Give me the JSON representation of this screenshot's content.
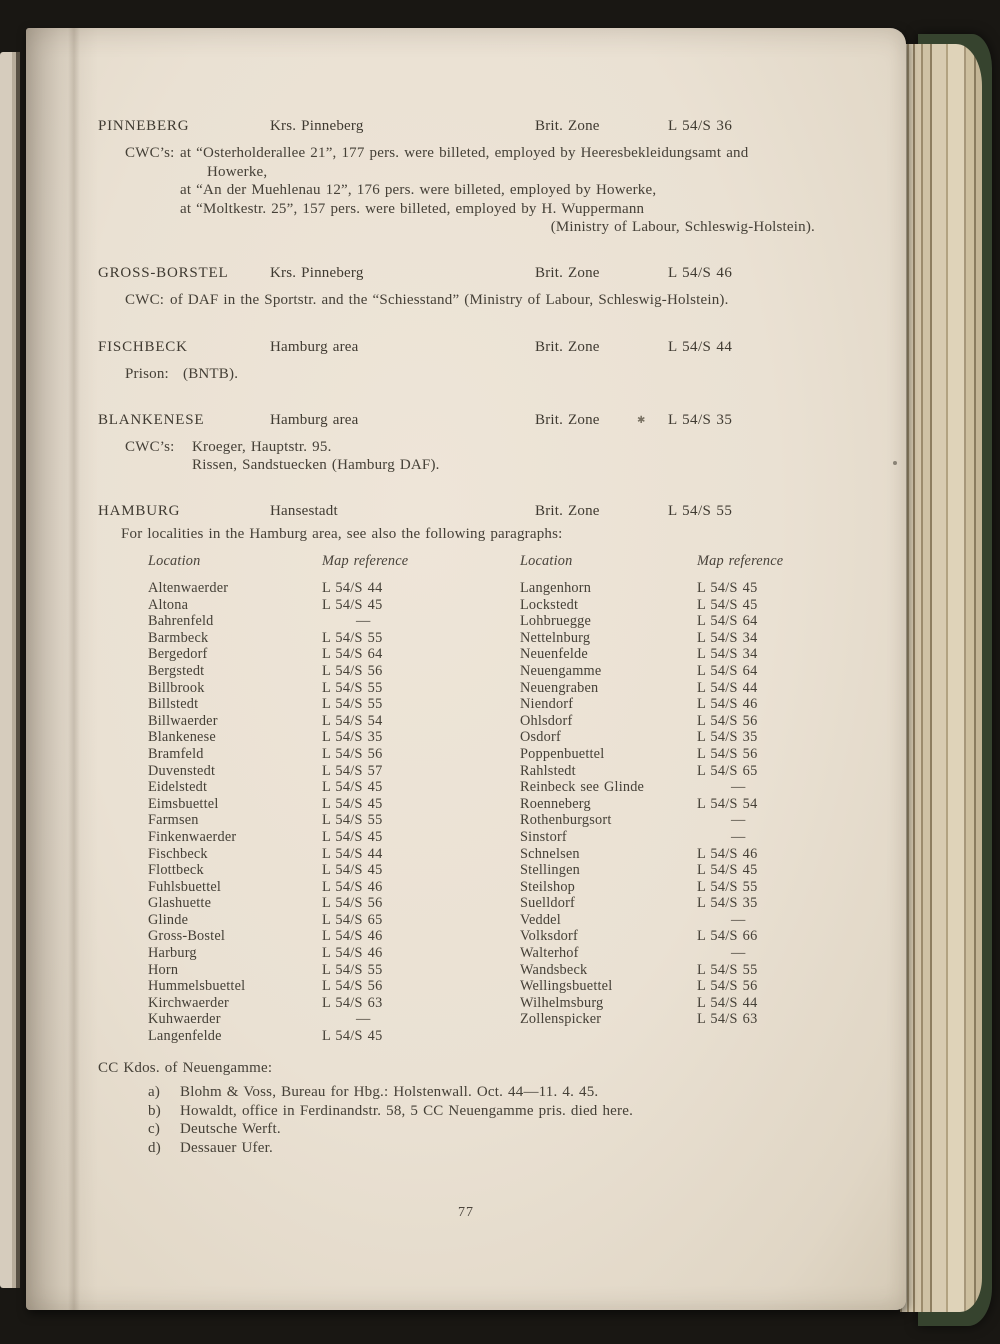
{
  "page_number": "77",
  "sections": [
    {
      "name": "PINNEBERG",
      "area": "Krs. Pinneberg",
      "zone": "Brit. Zone",
      "map_ref": "L 54/S 36",
      "body_label": "CWC’s:",
      "line1": "at “Osterholderallee 21”, 177 pers. were billeted, employed by Heeresbekleidungsamt and",
      "line2": "Howerke,",
      "line3": "at “An der Muehlenau 12”, 176 pers. were billeted, employed by Howerke,",
      "line4": "at “Moltkestr. 25”, 157 pers. were billeted, employed by H. Wuppermann",
      "line5": "(Ministry of Labour, Schleswig-Holstein)."
    },
    {
      "name": "GROSS-BORSTEL",
      "area": "Krs. Pinneberg",
      "zone": "Brit. Zone",
      "map_ref": "L 54/S 46",
      "body_label": "CWC:",
      "line1": "of DAF in the Sportstr. and the “Schiesstand” (Ministry of Labour, Schleswig-Holstein)."
    },
    {
      "name": "FISCHBECK",
      "area": "Hamburg area",
      "zone": "Brit. Zone",
      "map_ref": "L 54/S 44",
      "body_label": "Prison:",
      "line1": "(BNTB)."
    },
    {
      "name": "BLANKENESE",
      "area": "Hamburg area",
      "zone": "Brit. Zone",
      "map_ref": "L 54/S 35",
      "mark": "✱",
      "body_label": "CWC’s:",
      "line1": "Kroeger, Hauptstr. 95.",
      "line2": "Rissen, Sandstuecken (Hamburg DAF)."
    },
    {
      "name": "HAMBURG",
      "area": "Hansestadt",
      "zone": "Brit. Zone",
      "map_ref": "L 54/S 55",
      "intro": "For localities in the Hamburg area, see also the following paragraphs:"
    }
  ],
  "locality_table": {
    "headers": {
      "location": "Location",
      "map_reference": "Map reference"
    },
    "left_rows": [
      {
        "location": "Altenwaerder",
        "map_ref": "L 54/S 44"
      },
      {
        "location": "Altona",
        "map_ref": "L 54/S 45"
      },
      {
        "location": "Bahrenfeld",
        "map_ref": "—"
      },
      {
        "location": "Barmbeck",
        "map_ref": "L 54/S 55"
      },
      {
        "location": "Bergedorf",
        "map_ref": "L 54/S 64"
      },
      {
        "location": "Bergstedt",
        "map_ref": "L 54/S 56"
      },
      {
        "location": "Billbrook",
        "map_ref": "L 54/S 55"
      },
      {
        "location": "Billstedt",
        "map_ref": "L 54/S 55"
      },
      {
        "location": "Billwaerder",
        "map_ref": "L 54/S 54"
      },
      {
        "location": "Blankenese",
        "map_ref": "L 54/S 35"
      },
      {
        "location": "Bramfeld",
        "map_ref": "L 54/S 56"
      },
      {
        "location": "Duvenstedt",
        "map_ref": "L 54/S 57"
      },
      {
        "location": "Eidelstedt",
        "map_ref": "L 54/S 45"
      },
      {
        "location": "Eimsbuettel",
        "map_ref": "L 54/S 45"
      },
      {
        "location": "Farmsen",
        "map_ref": "L 54/S 55"
      },
      {
        "location": "Finkenwaerder",
        "map_ref": "L 54/S 45"
      },
      {
        "location": "Fischbeck",
        "map_ref": "L 54/S 44"
      },
      {
        "location": "Flottbeck",
        "map_ref": "L 54/S 45"
      },
      {
        "location": "Fuhlsbuettel",
        "map_ref": "L 54/S 46"
      },
      {
        "location": "Glashuette",
        "map_ref": "L 54/S 56"
      },
      {
        "location": "Glinde",
        "map_ref": "L 54/S 65"
      },
      {
        "location": "Gross-Bostel",
        "map_ref": "L 54/S 46"
      },
      {
        "location": "Harburg",
        "map_ref": "L 54/S 46"
      },
      {
        "location": "Horn",
        "map_ref": "L 54/S 55"
      },
      {
        "location": "Hummelsbuettel",
        "map_ref": "L 54/S 56"
      },
      {
        "location": "Kirchwaerder",
        "map_ref": "L 54/S 63"
      },
      {
        "location": "Kuhwaerder",
        "map_ref": "—"
      },
      {
        "location": "Langenfelde",
        "map_ref": "L 54/S 45"
      }
    ],
    "right_rows": [
      {
        "location": "Langenhorn",
        "map_ref": "L 54/S 45"
      },
      {
        "location": "Lockstedt",
        "map_ref": "L 54/S 45"
      },
      {
        "location": "Lohbruegge",
        "map_ref": "L 54/S 64"
      },
      {
        "location": "Nettelnburg",
        "map_ref": "L 54/S 34"
      },
      {
        "location": "Neuenfelde",
        "map_ref": "L 54/S 34"
      },
      {
        "location": "Neuengamme",
        "map_ref": "L 54/S 64"
      },
      {
        "location": "Neuengraben",
        "map_ref": "L 54/S 44"
      },
      {
        "location": "Niendorf",
        "map_ref": "L 54/S 46"
      },
      {
        "location": "Ohlsdorf",
        "map_ref": "L 54/S 56"
      },
      {
        "location": "Osdorf",
        "map_ref": "L 54/S 35"
      },
      {
        "location": "Poppenbuettel",
        "map_ref": "L 54/S 56"
      },
      {
        "location": "Rahlstedt",
        "map_ref": "L 54/S 65"
      },
      {
        "location": "Reinbeck see Glinde",
        "map_ref": "—"
      },
      {
        "location": "Roenneberg",
        "map_ref": "L 54/S 54"
      },
      {
        "location": "Rothenburgsort",
        "map_ref": "—"
      },
      {
        "location": "Sinstorf",
        "map_ref": "—"
      },
      {
        "location": "Schnelsen",
        "map_ref": "L 54/S 46"
      },
      {
        "location": "Stellingen",
        "map_ref": "L 54/S 45"
      },
      {
        "location": "Steilshop",
        "map_ref": "L 54/S 55"
      },
      {
        "location": "Suelldorf",
        "map_ref": "L 54/S 35"
      },
      {
        "location": "Veddel",
        "map_ref": "—"
      },
      {
        "location": "Volksdorf",
        "map_ref": "L 54/S 66"
      },
      {
        "location": "Walterhof",
        "map_ref": "—"
      },
      {
        "location": "Wandsbeck",
        "map_ref": "L 54/S 55"
      },
      {
        "location": "Wellingsbuettel",
        "map_ref": "L 54/S 56"
      },
      {
        "location": "Wilhelmsburg",
        "map_ref": "L 54/S 44"
      },
      {
        "location": "Zollenspicker",
        "map_ref": "L 54/S 63"
      }
    ]
  },
  "cc_kdos": {
    "heading": "CC Kdos. of Neuengamme:",
    "items": [
      {
        "label": "a)",
        "text": "Blohm & Voss, Bureau for Hbg.: Holstenwall. Oct. 44—11. 4. 45."
      },
      {
        "label": "b)",
        "text": "Howaldt, office in Ferdinandstr. 58, 5 CC Neuengamme pris. died here."
      },
      {
        "label": "c)",
        "text": "Deutsche Werft."
      },
      {
        "label": "d)",
        "text": "Dessauer Ufer."
      }
    ]
  }
}
